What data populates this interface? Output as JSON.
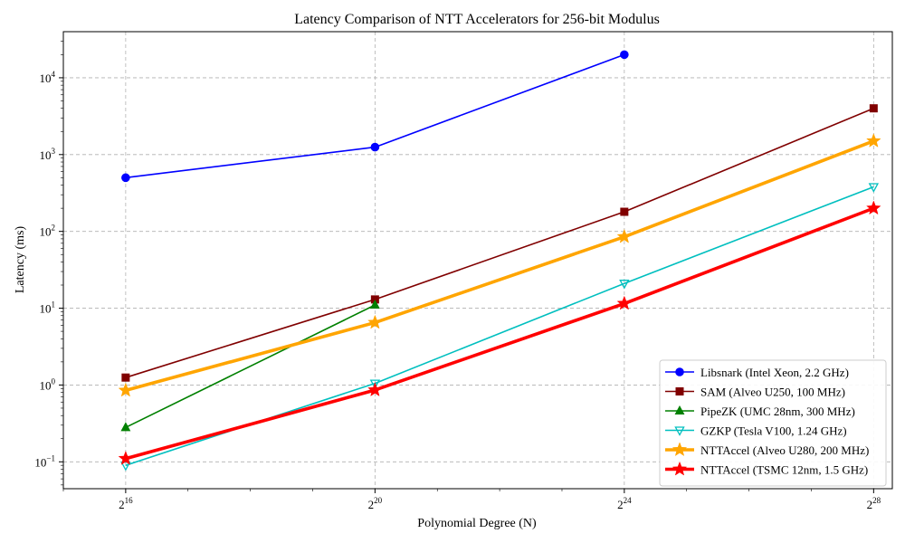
{
  "chart_data": {
    "type": "line",
    "title": "Latency Comparison of NTT Accelerators for 256-bit Modulus",
    "xlabel": "Polynomial Degree (N)",
    "ylabel": "Latency (ms)",
    "x_scale": "log2",
    "y_scale": "log10",
    "xlim_log2": [
      15.0,
      28.3
    ],
    "ylim_log10": [
      -1.35,
      4.6
    ],
    "x_ticks": [
      {
        "exp": 16,
        "base": "2",
        "sup": "16"
      },
      {
        "exp": 20,
        "base": "2",
        "sup": "20"
      },
      {
        "exp": 24,
        "base": "2",
        "sup": "24"
      },
      {
        "exp": 28,
        "base": "2",
        "sup": "28"
      }
    ],
    "y_ticks": [
      {
        "exp": -1,
        "base": "10",
        "sup": "−1"
      },
      {
        "exp": 0,
        "base": "10",
        "sup": "0"
      },
      {
        "exp": 1,
        "base": "10",
        "sup": "1"
      },
      {
        "exp": 2,
        "base": "10",
        "sup": "2"
      },
      {
        "exp": 3,
        "base": "10",
        "sup": "3"
      },
      {
        "exp": 4,
        "base": "10",
        "sup": "4"
      }
    ],
    "grid": true,
    "legend_position": "lower-right",
    "series": [
      {
        "name": "Libsnark (Intel Xeon, 2.2 GHz)",
        "color": "#0000ff",
        "marker": "circle",
        "linewidth": 1.6,
        "x_log2": [
          16,
          20,
          24
        ],
        "y": [
          500,
          1250,
          20000
        ]
      },
      {
        "name": "SAM (Alveo U250, 100 MHz)",
        "color": "#800000",
        "marker": "square",
        "linewidth": 1.6,
        "x_log2": [
          16,
          20,
          24,
          28
        ],
        "y": [
          1.25,
          13,
          180,
          4000
        ]
      },
      {
        "name": "PipeZK (UMC 28nm, 300 MHz)",
        "color": "#008000",
        "marker": "triangle-up",
        "linewidth": 1.6,
        "x_log2": [
          16,
          20
        ],
        "y": [
          0.28,
          11
        ]
      },
      {
        "name": "GZKP (Tesla V100, 1.24 GHz)",
        "color": "#00bfbf",
        "marker": "triangle-down",
        "linewidth": 1.6,
        "x_log2": [
          16,
          20,
          24,
          28
        ],
        "y": [
          0.09,
          1.05,
          21,
          380
        ]
      },
      {
        "name": "NTTAccel (Alveo U280, 200 MHz)",
        "color": "#ffa500",
        "marker": "star",
        "linewidth": 3.6,
        "x_log2": [
          16,
          20,
          24,
          28
        ],
        "y": [
          0.85,
          6.5,
          85,
          1500
        ]
      },
      {
        "name": "NTTAccel (TSMC 12nm, 1.5 GHz)",
        "color": "#ff0000",
        "marker": "star",
        "linewidth": 3.6,
        "x_log2": [
          16,
          20,
          24,
          28
        ],
        "y": [
          0.11,
          0.86,
          11.5,
          200
        ]
      }
    ]
  }
}
